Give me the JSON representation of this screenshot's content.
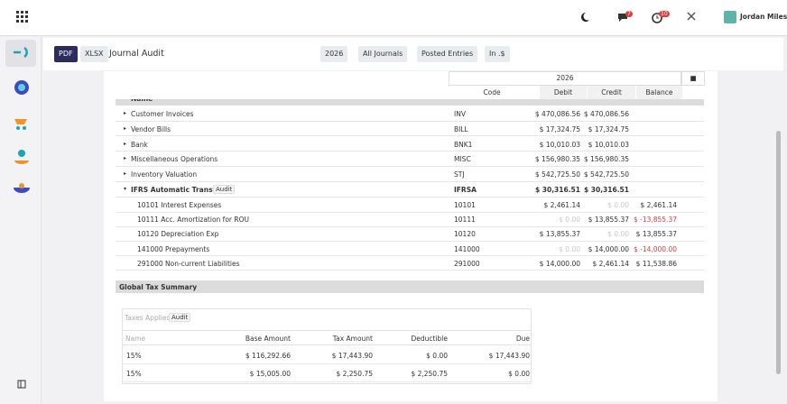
{
  "topbar": {
    "user": "Jordan Miles",
    "badges": [
      "7",
      "10"
    ]
  },
  "toolbar": {
    "buttons": [
      "PDF",
      "XLSX"
    ],
    "title": "Journal Audit",
    "filters": [
      "2026",
      "All Journals",
      "Posted Entries",
      "In .$"
    ]
  },
  "report": {
    "period": "2026",
    "columns": [
      "Name",
      "Code",
      "Debit",
      "Credit",
      "Balance"
    ],
    "journals": [
      {
        "name": "Customer Invoices",
        "code": "INV",
        "debit": "$ 470,086.56",
        "credit": "$ 470,086.56"
      },
      {
        "name": "Vendor Bills",
        "code": "BILL",
        "debit": "$ 17,324.75",
        "credit": "$ 17,324.75"
      },
      {
        "name": "Bank",
        "code": "BNK1",
        "debit": "$ 10,010.03",
        "credit": "$ 10,010.03"
      },
      {
        "name": "Miscellaneous Operations",
        "code": "MISC",
        "debit": "$ 156,980.35",
        "credit": "$ 156,980.35"
      },
      {
        "name": "Inventory Valuation",
        "code": "STJ",
        "debit": "$ 542,725.50",
        "credit": "$ 542,725.50"
      },
      {
        "name": "IFRS Automatic Transfers",
        "tag": "Audit",
        "code": "IFRSA",
        "debit": "$ 30,316.51",
        "credit": "$ 30,316.51"
      }
    ],
    "accounts": [
      {
        "name": "10101 Interest Expenses",
        "code": "10101",
        "debit": "$ 2,461.14",
        "credit": "$ 0.00",
        "balance": "$ 2,461.14"
      },
      {
        "name": "10111 Acc. Amortization for ROU",
        "code": "10111",
        "debit": "$ 0.00",
        "credit": "$ 13,855.37",
        "balance": "$ -13,855.37"
      },
      {
        "name": "10120 Depreciation Exp",
        "code": "10120",
        "debit": "$ 13,855.37",
        "credit": "$ 0.00",
        "balance": "$ 13,855.37"
      },
      {
        "name": "141000 Prepayments",
        "code": "141000",
        "debit": "$ 0.00",
        "credit": "$ 14,000.00",
        "balance": "$ -14,000.00"
      },
      {
        "name": "291000 Non-current Liabilities",
        "code": "291000",
        "debit": "$ 14,000.00",
        "credit": "$ 2,461.14",
        "balance": "$ 11,538.86"
      }
    ]
  },
  "tax": {
    "title": "Global Tax Summary",
    "label": "Taxes Applied",
    "tag": "Audit",
    "columns": [
      "Name",
      "Base Amount",
      "Tax Amount",
      "Deductible",
      "Due"
    ],
    "rows": [
      [
        "15%",
        "$ 116,292.66",
        "$ 17,443.90",
        "$ 0.00",
        "$ 17,443.90"
      ],
      [
        "15%",
        "$ 15,005.00",
        "$ 2,250.75",
        "$ 2,250.75",
        "$ 0.00"
      ]
    ]
  }
}
